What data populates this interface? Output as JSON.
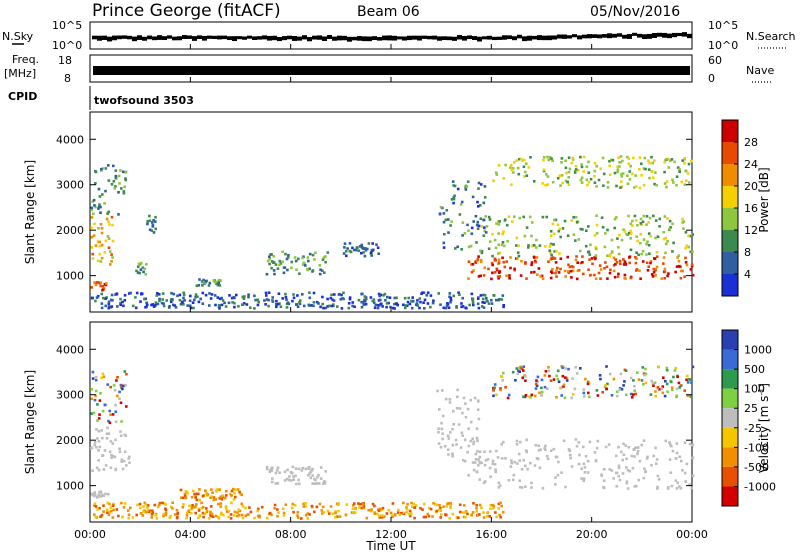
{
  "header": {
    "station": "Prince George (fitACF)",
    "beam": "Beam 06",
    "date": "05/Nov/2016"
  },
  "params": {
    "nsky_label": "N.Sky",
    "nsky_ticks": [
      "10^5",
      "10^0"
    ],
    "nsearch_label": "N.Search",
    "nsearch_ticks": [
      "10^5",
      "10^0"
    ],
    "freq_label_1": "Freq.",
    "freq_label_2": "[MHz]",
    "freq_ticks": [
      "18",
      "8"
    ],
    "nave_label": "Nave",
    "nave_ticks": [
      "60",
      "0"
    ],
    "cpid_label": "CPID",
    "cpid_value": "twofsound 3503"
  },
  "colors": {
    "power": [
      "#1a2fd6",
      "#2f5fa0",
      "#3c8a50",
      "#8ec63f",
      "#f5d000",
      "#f08c00",
      "#e84a00",
      "#cc0000"
    ],
    "velocity": [
      "#2a3fb0",
      "#3a6ad8",
      "#2e9a4e",
      "#7ed040",
      "#bdbdbd",
      "#f3c600",
      "#f09000",
      "#e85000",
      "#d40000"
    ],
    "ground_scatter": "#bdbdbd"
  },
  "chart_data": [
    {
      "type": "heatmap",
      "name": "power",
      "ylabel": "Slant Range [km]",
      "yticks": [
        "1000",
        "2000",
        "3000",
        "4000"
      ],
      "ylim": [
        200,
        4600
      ],
      "xlim": [
        0,
        24
      ],
      "colorbar": {
        "label": "Power [dB]",
        "ticks": [
          "4",
          "8",
          "12",
          "16",
          "20",
          "24",
          "28"
        ],
        "range": [
          0,
          32
        ]
      },
      "regions": [
        {
          "t0": 0.0,
          "t1": 1.4,
          "r0": 2300,
          "r1": 3500,
          "level": 10
        },
        {
          "t0": 0.0,
          "t1": 0.9,
          "r0": 1200,
          "r1": 2300,
          "level": 20
        },
        {
          "t0": 0.0,
          "t1": 0.6,
          "r0": 650,
          "r1": 850,
          "level": 26
        },
        {
          "t0": 1.8,
          "t1": 2.2,
          "r0": 1000,
          "r1": 1250,
          "level": 10
        },
        {
          "t0": 2.2,
          "t1": 2.6,
          "r0": 1900,
          "r1": 2300,
          "level": 7
        },
        {
          "t0": 4.2,
          "t1": 5.2,
          "r0": 750,
          "r1": 900,
          "level": 9
        },
        {
          "t0": 7.0,
          "t1": 9.5,
          "r0": 1000,
          "r1": 1500,
          "level": 11
        },
        {
          "t0": 10.0,
          "t1": 11.5,
          "r0": 1400,
          "r1": 1700,
          "level": 6
        },
        {
          "t0": 13.9,
          "t1": 15.8,
          "r0": 1500,
          "r1": 3100,
          "level": 8
        },
        {
          "t0": 15.0,
          "t1": 24.0,
          "r0": 900,
          "r1": 1400,
          "level": 27
        },
        {
          "t0": 15.5,
          "t1": 24.0,
          "r0": 1400,
          "r1": 2300,
          "level": 13
        },
        {
          "t0": 16.0,
          "t1": 24.0,
          "r0": 2900,
          "r1": 3600,
          "level": 15
        },
        {
          "t0": 0.0,
          "t1": 16.5,
          "r0": 250,
          "r1": 600,
          "level": 5
        }
      ]
    },
    {
      "type": "heatmap",
      "name": "velocity",
      "xlabel": "Time UT",
      "ylabel": "Slant Range [km]",
      "yticks": [
        "1000",
        "2000",
        "3000",
        "4000"
      ],
      "xticks": [
        "00:00",
        "04:00",
        "08:00",
        "12:00",
        "16:00",
        "20:00",
        "00:00"
      ],
      "ylim": [
        200,
        4600
      ],
      "xlim": [
        0,
        24
      ],
      "colorbar": {
        "label": "Velocity [m s",
        "label_sup": "-1",
        "label_end": "]",
        "ticks": [
          "1000",
          "500",
          "100",
          "25",
          "-25",
          "-100",
          "-500",
          "-1000"
        ]
      },
      "regions": [
        {
          "t0": 0.0,
          "t1": 1.4,
          "r0": 2300,
          "r1": 3500,
          "cat": "mixed"
        },
        {
          "t0": 0.0,
          "t1": 1.6,
          "r0": 1300,
          "r1": 2300,
          "cat": "ground"
        },
        {
          "t0": 0.0,
          "t1": 0.7,
          "r0": 700,
          "r1": 850,
          "cat": "ground"
        },
        {
          "t0": 3.5,
          "t1": 6.0,
          "r0": 650,
          "r1": 900,
          "cat": "neg"
        },
        {
          "t0": 7.0,
          "t1": 9.5,
          "r0": 1000,
          "r1": 1400,
          "cat": "ground"
        },
        {
          "t0": 13.8,
          "t1": 15.5,
          "r0": 1500,
          "r1": 3100,
          "cat": "ground"
        },
        {
          "t0": 15.0,
          "t1": 24.0,
          "r0": 900,
          "r1": 2000,
          "cat": "ground"
        },
        {
          "t0": 16.0,
          "t1": 24.0,
          "r0": 2900,
          "r1": 3600,
          "cat": "mixed"
        },
        {
          "t0": 0.0,
          "t1": 16.5,
          "r0": 250,
          "r1": 600,
          "cat": "neg"
        }
      ]
    }
  ]
}
